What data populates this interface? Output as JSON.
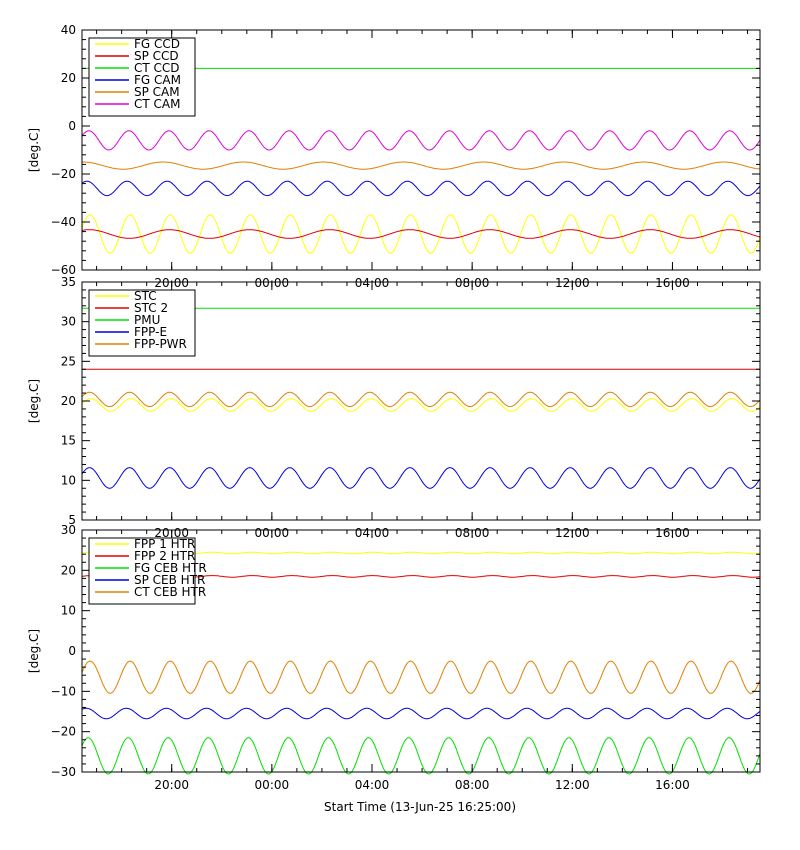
{
  "xlabel": "Start Time (13-Jun-25 16:25:00)",
  "chart_data": [
    {
      "type": "line",
      "ylabel": "[deg.C]",
      "xlim": [
        0,
        27.08
      ],
      "ylim": [
        -60,
        40
      ],
      "yticks": [
        -60,
        -40,
        -20,
        0,
        20,
        40
      ],
      "ytick_labels": [
        "−60",
        "−40",
        "−20",
        "0",
        "20",
        "40"
      ],
      "xticks": [
        3.583,
        7.583,
        11.583,
        15.583,
        19.583,
        23.583
      ],
      "xtick_labels": [
        "20:00",
        "00:00",
        "04:00",
        "08:00",
        "12:00",
        "16:00"
      ],
      "legend_position": "top-left",
      "series": [
        {
          "name": "FG CCD",
          "color": "#ffff00",
          "base": -45,
          "amp": 8,
          "period": 1.6,
          "phase": 0.3
        },
        {
          "name": "SP CCD",
          "color": "#e00000",
          "base": -45,
          "amp": 1.8,
          "period": 3.2,
          "phase": 1.0
        },
        {
          "name": "CT CCD",
          "color": "#00e000",
          "base": 24,
          "amp": 0,
          "period": 1.6,
          "phase": 0
        },
        {
          "name": "FG CAM",
          "color": "#0000e0",
          "base": -26,
          "amp": 3,
          "period": 1.6,
          "phase": 0.8
        },
        {
          "name": "SP CAM",
          "color": "#e08000",
          "base": -16.5,
          "amp": 1.5,
          "period": 3.2,
          "phase": 1.5
        },
        {
          "name": "CT CAM",
          "color": "#e000e0",
          "base": -6,
          "amp": 4,
          "period": 1.6,
          "phase": 0.5
        }
      ]
    },
    {
      "type": "line",
      "ylabel": "[deg.C]",
      "xlim": [
        0,
        27.08
      ],
      "ylim": [
        5,
        35
      ],
      "yticks": [
        5,
        10,
        15,
        20,
        25,
        30,
        35
      ],
      "ytick_labels": [
        "5",
        "10",
        "15",
        "20",
        "25",
        "30",
        "35"
      ],
      "xticks": [
        3.583,
        7.583,
        11.583,
        15.583,
        19.583,
        23.583
      ],
      "xtick_labels": [
        "20:00",
        "00:00",
        "04:00",
        "08:00",
        "12:00",
        "16:00"
      ],
      "legend_position": "top-left",
      "series": [
        {
          "name": "STC",
          "color": "#ffff00",
          "base": 19.5,
          "amp": 0.8,
          "period": 1.6,
          "phase": 0.2
        },
        {
          "name": "STC 2",
          "color": "#e00000",
          "base": 24,
          "amp": 0,
          "period": 1.6,
          "phase": 0
        },
        {
          "name": "PMU",
          "color": "#00e000",
          "base": 31.7,
          "amp": 0,
          "period": 1.6,
          "phase": 0
        },
        {
          "name": "FPP-E",
          "color": "#0000e0",
          "base": 10.3,
          "amp": 1.3,
          "period": 1.6,
          "phase": 0.4
        },
        {
          "name": "FPP-PWR",
          "color": "#e08000",
          "base": 20.2,
          "amp": 0.9,
          "period": 1.6,
          "phase": 0.4
        }
      ]
    },
    {
      "type": "line",
      "ylabel": "[deg.C]",
      "xlim": [
        0,
        27.08
      ],
      "ylim": [
        -30,
        30
      ],
      "yticks": [
        -30,
        -20,
        -10,
        0,
        10,
        20,
        30
      ],
      "ytick_labels": [
        "−30",
        "−20",
        "−10",
        "0",
        "10",
        "20",
        "30"
      ],
      "xticks": [
        3.583,
        7.583,
        11.583,
        15.583,
        19.583,
        23.583
      ],
      "xtick_labels": [
        "20:00",
        "00:00",
        "04:00",
        "08:00",
        "12:00",
        "16:00"
      ],
      "legend_position": "top-left",
      "series": [
        {
          "name": "FPP 1 HTR",
          "color": "#ffff00",
          "base": 24.3,
          "amp": 0.2,
          "period": 1.6,
          "phase": 0
        },
        {
          "name": "FPP 2 HTR",
          "color": "#e00000",
          "base": 18.5,
          "amp": 0.2,
          "period": 1.6,
          "phase": 0
        },
        {
          "name": "FG CEB HTR",
          "color": "#00e000",
          "base": -26,
          "amp": 4.5,
          "period": 1.6,
          "phase": 0.6
        },
        {
          "name": "SP CEB HTR",
          "color": "#0000e0",
          "base": -15.5,
          "amp": 1.3,
          "period": 1.6,
          "phase": 0.9
        },
        {
          "name": "CT CEB HTR",
          "color": "#e08000",
          "base": -6.5,
          "amp": 4,
          "period": 1.6,
          "phase": 0.3
        }
      ]
    }
  ]
}
